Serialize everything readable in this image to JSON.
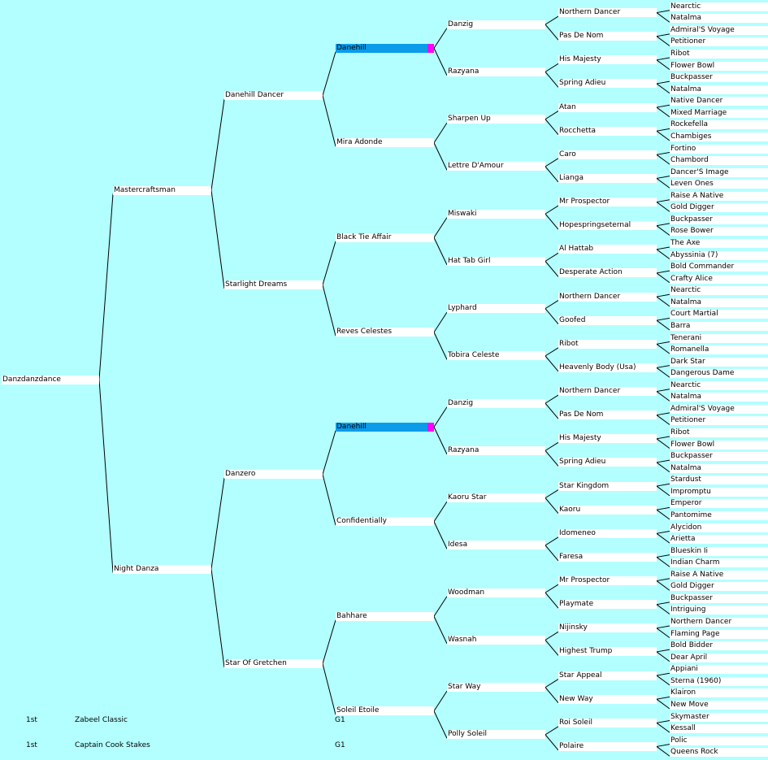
{
  "horse": "Danzdanzdance",
  "pedigree": {
    "name": "Danzdanzdance",
    "children": [
      {
        "name": "Mastercraftsman",
        "children": [
          {
            "name": "Danehill Dancer",
            "children": [
              {
                "name": "Danehill",
                "highlight": true,
                "children": [
                  {
                    "name": "Danzig",
                    "children": [
                      {
                        "name": "Northern Dancer",
                        "children": [
                          {
                            "name": "Nearctic"
                          },
                          {
                            "name": "Natalma"
                          }
                        ]
                      },
                      {
                        "name": "Pas De Nom",
                        "children": [
                          {
                            "name": "Admiral'S Voyage"
                          },
                          {
                            "name": "Petitioner"
                          }
                        ]
                      }
                    ]
                  },
                  {
                    "name": "Razyana",
                    "children": [
                      {
                        "name": "His Majesty",
                        "children": [
                          {
                            "name": "Ribot"
                          },
                          {
                            "name": "Flower Bowl"
                          }
                        ]
                      },
                      {
                        "name": "Spring Adieu",
                        "children": [
                          {
                            "name": "Buckpasser"
                          },
                          {
                            "name": "Natalma"
                          }
                        ]
                      }
                    ]
                  }
                ]
              },
              {
                "name": "Mira Adonde",
                "children": [
                  {
                    "name": "Sharpen Up",
                    "children": [
                      {
                        "name": "Atan",
                        "children": [
                          {
                            "name": "Native Dancer"
                          },
                          {
                            "name": "Mixed Marriage"
                          }
                        ]
                      },
                      {
                        "name": "Rocchetta",
                        "children": [
                          {
                            "name": "Rockefella"
                          },
                          {
                            "name": "Chambiges"
                          }
                        ]
                      }
                    ]
                  },
                  {
                    "name": "Lettre D'Amour",
                    "children": [
                      {
                        "name": "Caro",
                        "children": [
                          {
                            "name": "Fortino"
                          },
                          {
                            "name": "Chambord"
                          }
                        ]
                      },
                      {
                        "name": "Lianga",
                        "children": [
                          {
                            "name": "Dancer'S Image"
                          },
                          {
                            "name": "Leven Ones"
                          }
                        ]
                      }
                    ]
                  }
                ]
              }
            ]
          },
          {
            "name": "Starlight Dreams",
            "children": [
              {
                "name": "Black Tie Affair",
                "children": [
                  {
                    "name": "Miswaki",
                    "children": [
                      {
                        "name": "Mr Prospector",
                        "children": [
                          {
                            "name": "Raise A Native"
                          },
                          {
                            "name": "Gold Digger"
                          }
                        ]
                      },
                      {
                        "name": "Hopespringseternal",
                        "children": [
                          {
                            "name": "Buckpasser"
                          },
                          {
                            "name": "Rose Bower"
                          }
                        ]
                      }
                    ]
                  },
                  {
                    "name": "Hat Tab Girl",
                    "children": [
                      {
                        "name": "Al Hattab",
                        "children": [
                          {
                            "name": "The Axe"
                          },
                          {
                            "name": "Abyssinia (7)"
                          }
                        ]
                      },
                      {
                        "name": "Desperate Action",
                        "children": [
                          {
                            "name": "Bold Commander"
                          },
                          {
                            "name": "Crafty Alice"
                          }
                        ]
                      }
                    ]
                  }
                ]
              },
              {
                "name": "Reves Celestes",
                "children": [
                  {
                    "name": "Lyphard",
                    "children": [
                      {
                        "name": "Northern Dancer",
                        "children": [
                          {
                            "name": "Nearctic"
                          },
                          {
                            "name": "Natalma"
                          }
                        ]
                      },
                      {
                        "name": "Goofed",
                        "children": [
                          {
                            "name": "Court Martial"
                          },
                          {
                            "name": "Barra"
                          }
                        ]
                      }
                    ]
                  },
                  {
                    "name": "Tobira Celeste",
                    "children": [
                      {
                        "name": "Ribot",
                        "children": [
                          {
                            "name": "Tenerani"
                          },
                          {
                            "name": "Romanella"
                          }
                        ]
                      },
                      {
                        "name": "Heavenly Body (Usa)",
                        "children": [
                          {
                            "name": "Dark Star"
                          },
                          {
                            "name": "Dangerous Dame"
                          }
                        ]
                      }
                    ]
                  }
                ]
              }
            ]
          }
        ]
      },
      {
        "name": "Night Danza",
        "children": [
          {
            "name": "Danzero",
            "children": [
              {
                "name": "Danehill",
                "highlight": true,
                "children": [
                  {
                    "name": "Danzig",
                    "children": [
                      {
                        "name": "Northern Dancer",
                        "children": [
                          {
                            "name": "Nearctic"
                          },
                          {
                            "name": "Natalma"
                          }
                        ]
                      },
                      {
                        "name": "Pas De Nom",
                        "children": [
                          {
                            "name": "Admiral'S Voyage"
                          },
                          {
                            "name": "Petitioner"
                          }
                        ]
                      }
                    ]
                  },
                  {
                    "name": "Razyana",
                    "children": [
                      {
                        "name": "His Majesty",
                        "children": [
                          {
                            "name": "Ribot"
                          },
                          {
                            "name": "Flower Bowl"
                          }
                        ]
                      },
                      {
                        "name": "Spring Adieu",
                        "children": [
                          {
                            "name": "Buckpasser"
                          },
                          {
                            "name": "Natalma"
                          }
                        ]
                      }
                    ]
                  }
                ]
              },
              {
                "name": "Confidentially",
                "children": [
                  {
                    "name": "Kaoru Star",
                    "children": [
                      {
                        "name": "Star Kingdom",
                        "children": [
                          {
                            "name": "Stardust"
                          },
                          {
                            "name": "Impromptu"
                          }
                        ]
                      },
                      {
                        "name": "Kaoru",
                        "children": [
                          {
                            "name": "Emperor"
                          },
                          {
                            "name": "Pantomime"
                          }
                        ]
                      }
                    ]
                  },
                  {
                    "name": "Idesa",
                    "children": [
                      {
                        "name": "Idomeneo",
                        "children": [
                          {
                            "name": "Alycidon"
                          },
                          {
                            "name": "Arietta"
                          }
                        ]
                      },
                      {
                        "name": "Faresa",
                        "children": [
                          {
                            "name": "Blueskin Ii"
                          },
                          {
                            "name": "Indian Charm"
                          }
                        ]
                      }
                    ]
                  }
                ]
              }
            ]
          },
          {
            "name": "Star Of Gretchen",
            "children": [
              {
                "name": "Bahhare",
                "children": [
                  {
                    "name": "Woodman",
                    "children": [
                      {
                        "name": "Mr Prospector",
                        "children": [
                          {
                            "name": "Raise A Native"
                          },
                          {
                            "name": "Gold Digger"
                          }
                        ]
                      },
                      {
                        "name": "Playmate",
                        "children": [
                          {
                            "name": "Buckpasser"
                          },
                          {
                            "name": "Intriguing"
                          }
                        ]
                      }
                    ]
                  },
                  {
                    "name": "Wasnah",
                    "children": [
                      {
                        "name": "Nijinsky",
                        "children": [
                          {
                            "name": "Northern Dancer"
                          },
                          {
                            "name": "Flaming Page"
                          }
                        ]
                      },
                      {
                        "name": "Highest Trump",
                        "children": [
                          {
                            "name": "Bold Bidder"
                          },
                          {
                            "name": "Dear April"
                          }
                        ]
                      }
                    ]
                  }
                ]
              },
              {
                "name": "Soleil Etoile",
                "children": [
                  {
                    "name": "Star Way",
                    "children": [
                      {
                        "name": "Star Appeal",
                        "children": [
                          {
                            "name": "Appiani"
                          },
                          {
                            "name": "Sterna (1960)"
                          }
                        ]
                      },
                      {
                        "name": "New Way",
                        "children": [
                          {
                            "name": "Klairon"
                          },
                          {
                            "name": "New Move"
                          }
                        ]
                      }
                    ]
                  },
                  {
                    "name": "Polly Soleil",
                    "children": [
                      {
                        "name": "Roi Soleil",
                        "children": [
                          {
                            "name": "Skymaster"
                          },
                          {
                            "name": "Kessall"
                          }
                        ]
                      },
                      {
                        "name": "Polaire",
                        "children": [
                          {
                            "name": "Polic"
                          },
                          {
                            "name": "Queens Rock"
                          }
                        ]
                      }
                    ]
                  }
                ]
              }
            ]
          }
        ]
      }
    ]
  },
  "results": [
    {
      "place": "1st",
      "race": "Zabeel Classic",
      "grade": "G1"
    },
    {
      "place": "1st",
      "race": "Captain Cook Stakes",
      "grade": "G1"
    }
  ],
  "colors": {
    "background": "#b3ffff",
    "box": "#ffffff",
    "highlight": "#0b9be9",
    "marker": "#ff00ff",
    "line": "#000000"
  }
}
